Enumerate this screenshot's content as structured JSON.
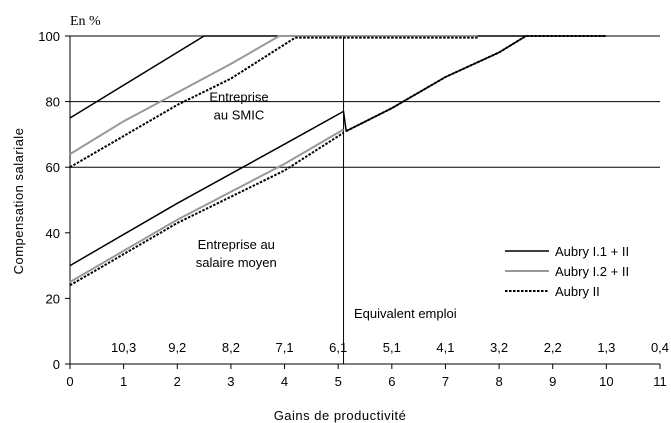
{
  "chart_data": {
    "type": "line",
    "unit_label": "En %",
    "xlabel": "Gains de productivité",
    "ylabel": "Compensation salariale",
    "xlim": [
      0,
      11
    ],
    "ylim": [
      0,
      100
    ],
    "x_ticks": [
      0,
      1,
      2,
      3,
      4,
      5,
      6,
      7,
      8,
      9,
      10,
      11
    ],
    "y_ticks": [
      0,
      20,
      40,
      60,
      80,
      100
    ],
    "hgrid": [
      60,
      80,
      100
    ],
    "vline": 5.1,
    "equiv_emploi": {
      "label": "Equivalent emploi",
      "values": [
        {
          "x": 1,
          "label": "10,3"
        },
        {
          "x": 2,
          "label": "9,2"
        },
        {
          "x": 3,
          "label": "8,2"
        },
        {
          "x": 4,
          "label": "7,1"
        },
        {
          "x": 5,
          "label": "6,1"
        },
        {
          "x": 6,
          "label": "5,1"
        },
        {
          "x": 7,
          "label": "4,1"
        },
        {
          "x": 8,
          "label": "3,2"
        },
        {
          "x": 9,
          "label": "2,2"
        },
        {
          "x": 10,
          "label": "1,3"
        },
        {
          "x": 11,
          "label": "0,4"
        }
      ]
    },
    "annotations": [
      {
        "id": "smic",
        "lines": [
          "Entreprise",
          "au SMIC"
        ],
        "x": 3.15,
        "y": 80
      },
      {
        "id": "moyen",
        "lines": [
          "Entreprise au",
          "salaire moyen"
        ],
        "x": 3.1,
        "y": 35
      }
    ],
    "legend_position": "bottom-right",
    "series": [
      {
        "name": "Aubry I.1 + II",
        "color": "#000000",
        "style": "solid",
        "lines": [
          [
            [
              0,
              75
            ],
            [
              2.5,
              100
            ],
            [
              8.5,
              100
            ]
          ],
          [
            [
              0,
              30
            ],
            [
              2,
              49
            ],
            [
              4,
              67
            ],
            [
              5.1,
              77
            ],
            [
              5.15,
              71
            ],
            [
              6,
              78
            ],
            [
              7,
              87.5
            ],
            [
              8,
              95
            ],
            [
              8.5,
              100
            ],
            [
              10,
              100
            ]
          ]
        ]
      },
      {
        "name": "Aubry I.2 + II",
        "color": "#999999",
        "style": "solid",
        "lines": [
          [
            [
              0,
              64
            ],
            [
              1,
              74
            ],
            [
              3,
              91.5
            ],
            [
              3.9,
              100
            ],
            [
              7.6,
              100
            ]
          ],
          [
            [
              0,
              25
            ],
            [
              2,
              44
            ],
            [
              4,
              61
            ],
            [
              5.1,
              71.5
            ]
          ]
        ]
      },
      {
        "name": "Aubry II",
        "color": "#000000",
        "style": "dotted",
        "lines": [
          [
            [
              0,
              60
            ],
            [
              2,
              79
            ],
            [
              3,
              87
            ],
            [
              4.2,
              99.5
            ],
            [
              7.6,
              99.5
            ]
          ],
          [
            [
              0,
              24
            ],
            [
              2,
              43
            ],
            [
              4,
              59
            ],
            [
              5.1,
              70.5
            ]
          ],
          [
            [
              5.15,
              71
            ],
            [
              6,
              78
            ],
            [
              7,
              87.5
            ],
            [
              8,
              95
            ],
            [
              8.5,
              100
            ],
            [
              10,
              100
            ]
          ]
        ]
      }
    ]
  }
}
